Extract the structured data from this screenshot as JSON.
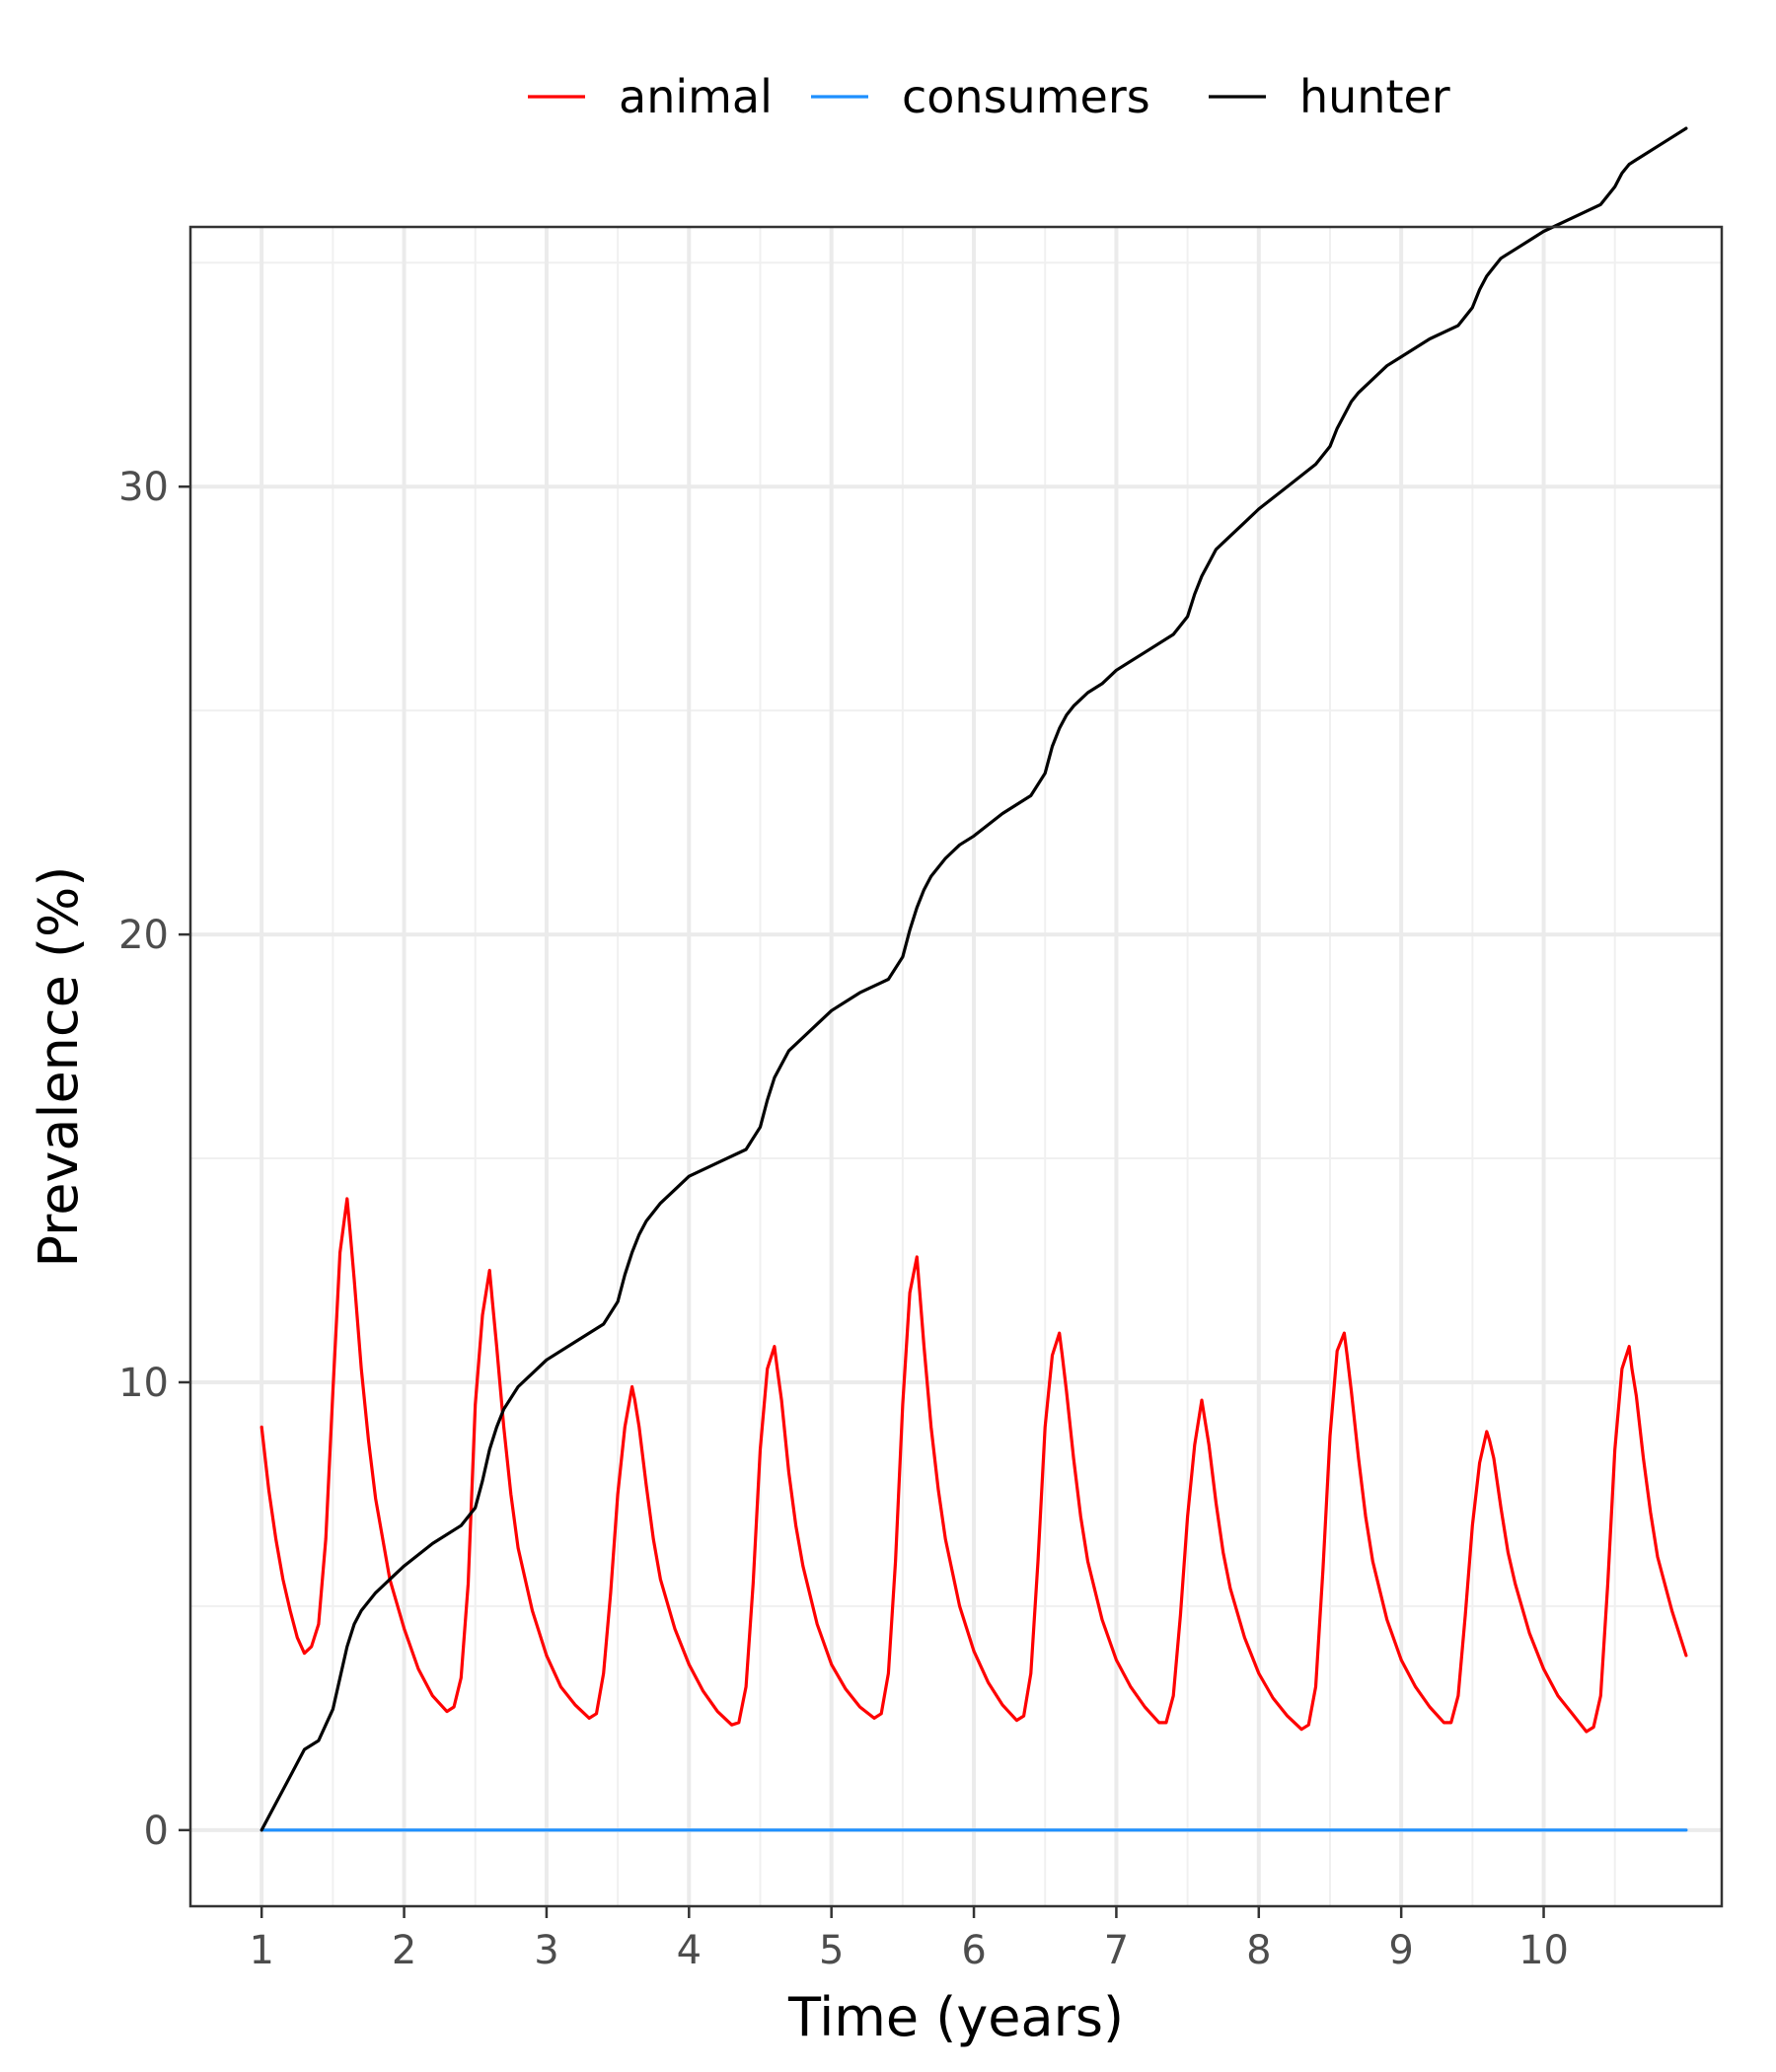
{
  "chart_data": {
    "type": "line",
    "title": "",
    "xlabel": "Time (years)",
    "ylabel": "Prevalence (%)",
    "xlim": [
      0.5,
      11.25
    ],
    "ylim": [
      -1.7,
      35.8
    ],
    "x_ticks": [
      1,
      2,
      3,
      4,
      5,
      6,
      7,
      8,
      9,
      10
    ],
    "x_tick_labels": [
      "1",
      "2",
      "3",
      "4",
      "5",
      "6",
      "7",
      "8",
      "9",
      "10"
    ],
    "y_ticks": [
      0,
      10,
      20,
      30
    ],
    "y_tick_labels": [
      "0",
      "10",
      "20",
      "30"
    ],
    "y_minor_ticks": [
      5,
      15,
      25,
      35
    ],
    "grid": true,
    "legend_position": "top",
    "series": [
      {
        "name": "animal",
        "color": "#ff0000",
        "x": [
          1.0,
          1.05,
          1.1,
          1.15,
          1.2,
          1.25,
          1.3,
          1.35,
          1.4,
          1.45,
          1.5,
          1.55,
          1.6,
          1.62,
          1.65,
          1.7,
          1.75,
          1.8,
          1.85,
          1.9,
          2.0,
          2.1,
          2.2,
          2.3,
          2.35,
          2.4,
          2.45,
          2.5,
          2.55,
          2.6,
          2.62,
          2.65,
          2.7,
          2.75,
          2.8,
          2.9,
          3.0,
          3.1,
          3.2,
          3.3,
          3.35,
          3.4,
          3.45,
          3.5,
          3.55,
          3.6,
          3.62,
          3.65,
          3.7,
          3.75,
          3.8,
          3.9,
          4.0,
          4.1,
          4.2,
          4.3,
          4.35,
          4.4,
          4.45,
          4.5,
          4.55,
          4.6,
          4.62,
          4.65,
          4.7,
          4.75,
          4.8,
          4.9,
          5.0,
          5.1,
          5.2,
          5.3,
          5.35,
          5.4,
          5.45,
          5.5,
          5.55,
          5.6,
          5.62,
          5.65,
          5.7,
          5.75,
          5.8,
          5.9,
          6.0,
          6.1,
          6.2,
          6.3,
          6.35,
          6.4,
          6.45,
          6.5,
          6.55,
          6.6,
          6.62,
          6.65,
          6.7,
          6.75,
          6.8,
          6.9,
          7.0,
          7.1,
          7.2,
          7.3,
          7.35,
          7.4,
          7.45,
          7.5,
          7.55,
          7.6,
          7.62,
          7.65,
          7.7,
          7.75,
          7.8,
          7.9,
          8.0,
          8.1,
          8.2,
          8.3,
          8.35,
          8.4,
          8.45,
          8.5,
          8.55,
          8.6,
          8.62,
          8.65,
          8.7,
          8.75,
          8.8,
          8.9,
          9.0,
          9.1,
          9.2,
          9.3,
          9.35,
          9.4,
          9.45,
          9.5,
          9.55,
          9.6,
          9.62,
          9.65,
          9.7,
          9.75,
          9.8,
          9.9,
          10.0,
          10.1,
          10.2,
          10.3,
          10.35,
          10.4,
          10.45,
          10.5,
          10.55,
          10.6,
          10.62,
          10.65,
          10.7,
          10.75,
          10.8,
          10.9,
          11.0
        ],
        "y": [
          9.0,
          7.6,
          6.5,
          5.6,
          4.9,
          4.3,
          3.95,
          4.1,
          4.6,
          6.5,
          9.8,
          12.9,
          14.1,
          13.4,
          12.3,
          10.3,
          8.7,
          7.4,
          6.5,
          5.6,
          4.5,
          3.6,
          3.0,
          2.65,
          2.75,
          3.4,
          5.5,
          9.5,
          11.5,
          12.5,
          11.8,
          10.8,
          9.0,
          7.5,
          6.3,
          4.9,
          3.9,
          3.2,
          2.8,
          2.5,
          2.6,
          3.5,
          5.3,
          7.5,
          9.0,
          9.9,
          9.6,
          9.0,
          7.7,
          6.5,
          5.6,
          4.5,
          3.7,
          3.1,
          2.65,
          2.35,
          2.4,
          3.2,
          5.5,
          8.5,
          10.3,
          10.8,
          10.3,
          9.6,
          8.0,
          6.8,
          5.9,
          4.6,
          3.7,
          3.15,
          2.75,
          2.5,
          2.6,
          3.5,
          6.0,
          9.5,
          12.0,
          12.8,
          12.0,
          10.8,
          9.0,
          7.6,
          6.5,
          5.0,
          4.0,
          3.3,
          2.8,
          2.45,
          2.55,
          3.5,
          6.0,
          9.0,
          10.6,
          11.1,
          10.6,
          9.8,
          8.3,
          7.0,
          6.0,
          4.7,
          3.8,
          3.2,
          2.75,
          2.4,
          2.4,
          3.0,
          4.8,
          7.0,
          8.6,
          9.6,
          9.2,
          8.6,
          7.3,
          6.2,
          5.4,
          4.3,
          3.5,
          2.95,
          2.55,
          2.25,
          2.35,
          3.2,
          5.8,
          8.8,
          10.7,
          11.1,
          10.6,
          9.8,
          8.3,
          7.0,
          6.0,
          4.7,
          3.8,
          3.2,
          2.75,
          2.4,
          2.4,
          3.0,
          4.8,
          6.8,
          8.2,
          8.9,
          8.7,
          8.3,
          7.2,
          6.2,
          5.5,
          4.4,
          3.6,
          3.0,
          2.6,
          2.2,
          2.3,
          3.0,
          5.5,
          8.5,
          10.3,
          10.8,
          10.3,
          9.7,
          8.3,
          7.1,
          6.1,
          4.9,
          3.9
        ]
      },
      {
        "name": "consumers",
        "color": "#1e90ff",
        "x": [
          1.0,
          11.0
        ],
        "y": [
          0.0,
          0.0
        ]
      },
      {
        "name": "hunter",
        "color": "#000000",
        "x": [
          1.0,
          1.1,
          1.2,
          1.3,
          1.4,
          1.5,
          1.55,
          1.6,
          1.65,
          1.7,
          1.8,
          1.9,
          2.0,
          2.2,
          2.4,
          2.5,
          2.55,
          2.6,
          2.65,
          2.7,
          2.8,
          2.9,
          3.0,
          3.2,
          3.4,
          3.5,
          3.55,
          3.6,
          3.65,
          3.7,
          3.8,
          3.9,
          4.0,
          4.2,
          4.4,
          4.5,
          4.55,
          4.6,
          4.65,
          4.7,
          4.8,
          4.9,
          5.0,
          5.2,
          5.4,
          5.5,
          5.55,
          5.6,
          5.65,
          5.7,
          5.8,
          5.9,
          6.0,
          6.2,
          6.4,
          6.5,
          6.55,
          6.6,
          6.65,
          6.7,
          6.8,
          6.9,
          7.0,
          7.2,
          7.4,
          7.5,
          7.55,
          7.6,
          7.65,
          7.7,
          7.8,
          7.9,
          8.0,
          8.2,
          8.4,
          8.5,
          8.55,
          8.6,
          8.65,
          8.7,
          8.8,
          8.9,
          9.0,
          9.2,
          9.4,
          9.5,
          9.55,
          9.6,
          9.65,
          9.7,
          9.8,
          9.9,
          10.0,
          10.2,
          10.4,
          10.5,
          10.55,
          10.6,
          10.65,
          10.7,
          10.8,
          10.9,
          11.0
        ],
        "y": [
          0.0,
          0.6,
          1.2,
          1.8,
          2.0,
          2.7,
          3.4,
          4.1,
          4.6,
          4.9,
          5.3,
          5.6,
          5.9,
          6.4,
          6.8,
          7.2,
          7.8,
          8.5,
          9.0,
          9.4,
          9.9,
          10.2,
          10.5,
          10.9,
          11.3,
          11.8,
          12.4,
          12.9,
          13.3,
          13.6,
          14.0,
          14.3,
          14.6,
          14.9,
          15.2,
          15.7,
          16.3,
          16.8,
          17.1,
          17.4,
          17.7,
          18.0,
          18.3,
          18.7,
          19.0,
          19.5,
          20.1,
          20.6,
          21.0,
          21.3,
          21.7,
          22.0,
          22.2,
          22.7,
          23.1,
          23.6,
          24.2,
          24.6,
          24.9,
          25.1,
          25.4,
          25.6,
          25.9,
          26.3,
          26.7,
          27.1,
          27.6,
          28.0,
          28.3,
          28.6,
          28.9,
          29.2,
          29.5,
          30.0,
          30.5,
          30.9,
          31.3,
          31.6,
          31.9,
          32.1,
          32.4,
          32.7,
          32.9,
          33.3,
          33.6,
          34.0,
          34.4,
          34.7,
          34.9,
          35.1,
          35.3,
          35.5,
          35.7,
          36.0,
          36.3,
          36.7,
          37.0,
          37.2,
          37.3,
          37.4,
          37.6,
          37.8,
          38.0
        ]
      }
    ]
  }
}
